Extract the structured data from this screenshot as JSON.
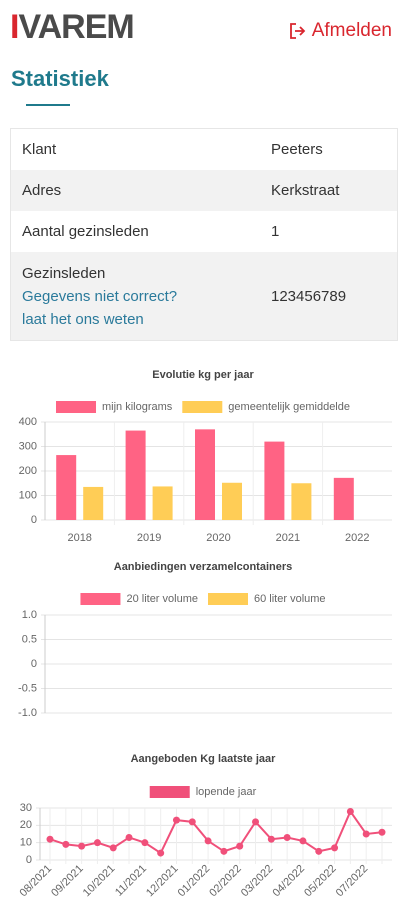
{
  "header": {
    "logo": "IVAREM",
    "logout": "Afmelden"
  },
  "page_title": "Statistiek",
  "table": {
    "rows": [
      [
        "Klant",
        "Peeters"
      ],
      [
        "Adres",
        "Kerkstraat"
      ],
      [
        "Aantal gezinsleden",
        "1"
      ],
      [
        "Gezinsleden",
        "123456789"
      ]
    ],
    "links": [
      "Gegevens niet correct?",
      "laat het ons weten"
    ]
  },
  "chart_data": [
    {
      "type": "bar",
      "title": "Evolutie kg per jaar",
      "categories": [
        "2018",
        "2019",
        "2020",
        "2021",
        "2022"
      ],
      "series": [
        {
          "name": "mijn kilograms",
          "color": "#ff6384",
          "values": [
            265,
            365,
            370,
            320,
            172
          ]
        },
        {
          "name": "gemeentelijk gemiddelde",
          "color": "#ffcd56",
          "values": [
            135,
            137,
            152,
            150,
            null
          ]
        }
      ],
      "ylim": [
        0,
        400
      ],
      "yticks": [
        0,
        100,
        200,
        300,
        400
      ],
      "grid": true
    },
    {
      "type": "bar",
      "title": "Aanbiedingen verzamelcontainers",
      "categories": [],
      "series": [
        {
          "name": "20 liter volume",
          "color": "#ff6384",
          "values": []
        },
        {
          "name": "60 liter volume",
          "color": "#ffcd56",
          "values": []
        }
      ],
      "ylim": [
        -1,
        1
      ],
      "yticks": [
        {
          "value": -1,
          "label": "-1.0"
        },
        {
          "value": -0.5,
          "label": "-0.5"
        },
        0,
        {
          "value": 0.5,
          "label": "0.5"
        },
        {
          "value": 1,
          "label": "1.0"
        }
      ],
      "grid": true
    },
    {
      "type": "line",
      "title": "Aangeboden Kg laatste jaar",
      "categories": [
        "08/2021",
        null,
        "09/2021",
        null,
        "10/2021",
        null,
        "11/2021",
        null,
        "12/2021",
        null,
        "01/2022",
        null,
        "02/2022",
        null,
        "03/2022",
        null,
        "04/2022",
        null,
        "05/2022",
        null,
        "07/2022",
        null
      ],
      "series": [
        {
          "name": "lopende jaar",
          "color": "#f0507a",
          "values": [
            12,
            9,
            8,
            10,
            7,
            13,
            10,
            4,
            23,
            22,
            11,
            5,
            8,
            22,
            12,
            13,
            11,
            5,
            7,
            28,
            15,
            16
          ]
        }
      ],
      "ylim": [
        0,
        30
      ],
      "yticks": [
        0,
        10,
        20,
        30
      ],
      "grid": true
    }
  ]
}
